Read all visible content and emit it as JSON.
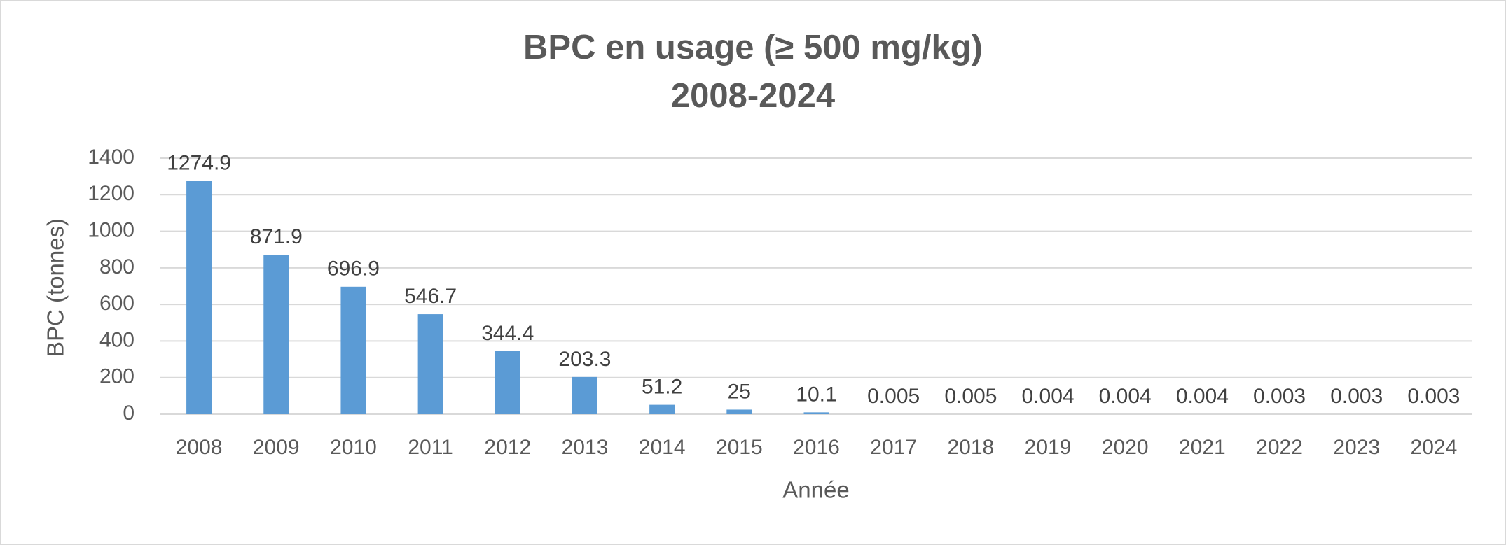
{
  "chart_data": {
    "type": "bar",
    "title": "BPC en usage (≥ 500 mg/kg)",
    "subtitle": "2008-2024",
    "x_label": "Année",
    "y_label": "BPC (tonnes)",
    "categories": [
      "2008",
      "2009",
      "2010",
      "2011",
      "2012",
      "2013",
      "2014",
      "2015",
      "2016",
      "2017",
      "2018",
      "2019",
      "2020",
      "2021",
      "2022",
      "2023",
      "2024"
    ],
    "values": [
      1274.9,
      871.9,
      696.9,
      546.7,
      344.4,
      203.3,
      51.2,
      25,
      10.1,
      0.005,
      0.005,
      0.004,
      0.004,
      0.004,
      0.003,
      0.003,
      0.003
    ],
    "color": "#5b9bd5",
    "ylim": [
      0,
      1400
    ],
    "yticks": [
      0,
      200,
      400,
      600,
      800,
      1000,
      1200,
      1400
    ],
    "grid": true
  }
}
